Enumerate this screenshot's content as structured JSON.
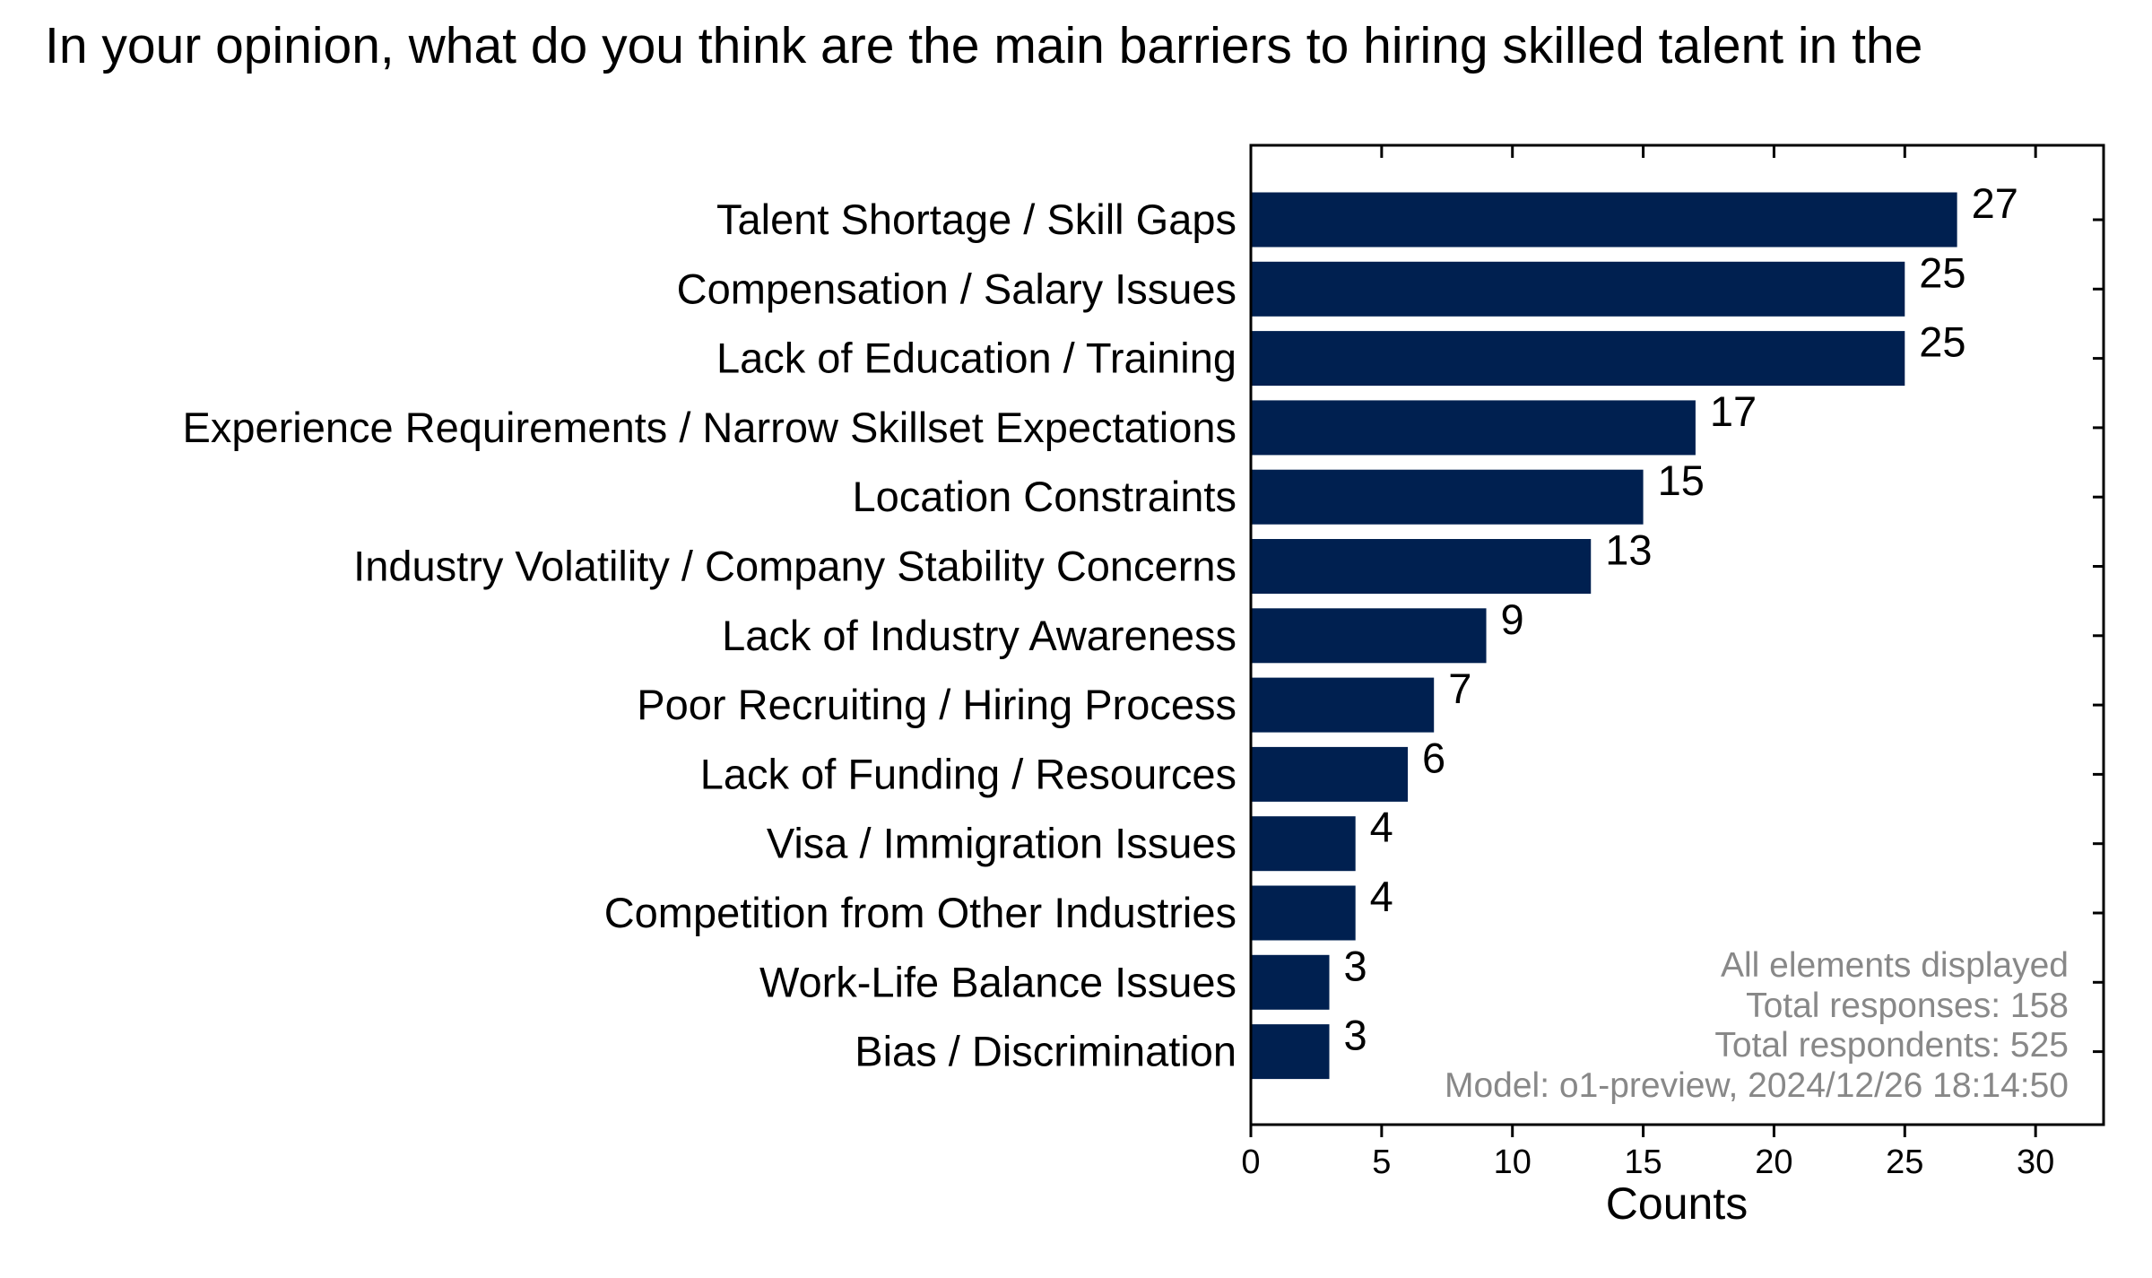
{
  "chart_data": {
    "type": "bar",
    "orientation": "horizontal",
    "title": "In your opinion, what do you think are the main barriers to hiring skilled talent in the",
    "xlabel": "Counts",
    "ylabel": "",
    "xlim": [
      0,
      32.6
    ],
    "xticks": [
      0,
      5,
      10,
      15,
      20,
      25,
      30
    ],
    "grid": false,
    "bar_color": "#002050",
    "categories": [
      "Talent Shortage / Skill Gaps",
      "Compensation / Salary Issues",
      "Lack of Education / Training",
      "Experience Requirements / Narrow Skillset Expectations",
      "Location Constraints",
      "Industry Volatility / Company Stability Concerns",
      "Lack of Industry Awareness",
      "Poor Recruiting / Hiring Process",
      "Lack of Funding / Resources",
      "Visa / Immigration Issues",
      "Competition from Other Industries",
      "Work-Life Balance Issues",
      "Bias / Discrimination"
    ],
    "values": [
      27,
      25,
      25,
      17,
      15,
      13,
      9,
      7,
      6,
      4,
      4,
      3,
      3
    ],
    "annotations": [
      "All elements displayed",
      "Total responses: 158",
      "Total respondents: 525",
      "Model: o1-preview, 2024/12/26 18:14:50"
    ]
  }
}
